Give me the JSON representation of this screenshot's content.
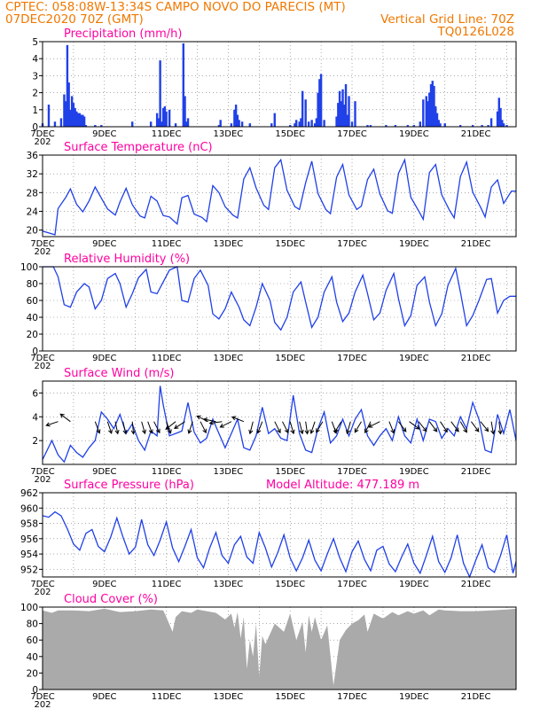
{
  "header": {
    "line1_left": "CPTEC:   058:08W-13:34S   CAMPO NOVO DO PARECIS (MT)",
    "line2_left": "07DEC2020 70Z (GMT)",
    "line2_right": "Vertical Grid Line: 70Z",
    "line3_right": "TQ0126L028"
  },
  "colors": {
    "header": "#f07800",
    "panel_title": "#ff00a0",
    "series": "#2040e8",
    "cloud": "#aaaaaa",
    "wind_arrow": "#000000"
  },
  "x_axis": {
    "labels": [
      "7DEC",
      "9DEC",
      "11DEC",
      "13DEC",
      "15DEC",
      "17DEC",
      "19DEC",
      "21DEC"
    ],
    "start_day": 7,
    "end_day": 22.3,
    "stub": "202"
  },
  "chart_data": [
    {
      "id": "precip",
      "type": "bar",
      "title": "Precipitation (mm/h)",
      "ylim": [
        0,
        5
      ],
      "yticks": [
        0,
        1,
        2,
        3,
        4,
        5
      ],
      "grid": true,
      "x": [
        7.0,
        7.2,
        7.4,
        7.6,
        7.7,
        7.75,
        7.8,
        7.85,
        7.9,
        7.95,
        8.0,
        8.05,
        8.1,
        8.15,
        8.2,
        8.25,
        8.3,
        8.35,
        8.4,
        8.7,
        8.9,
        9.9,
        10.5,
        10.7,
        10.75,
        10.8,
        10.85,
        10.9,
        10.95,
        11.0,
        11.1,
        11.3,
        11.55,
        11.6,
        11.65,
        11.7,
        12.7,
        12.75,
        13.1,
        13.2,
        13.25,
        13.3,
        13.35,
        13.45,
        13.7,
        14.4,
        14.5,
        15.0,
        15.15,
        15.2,
        15.3,
        15.35,
        15.4,
        15.5,
        15.6,
        15.7,
        15.8,
        15.85,
        15.9,
        15.95,
        16.0,
        16.1,
        16.5,
        16.55,
        16.6,
        16.65,
        16.7,
        16.75,
        16.8,
        16.85,
        16.9,
        17.0,
        17.1,
        17.5,
        17.6,
        18.1,
        18.4,
        18.8,
        19.0,
        19.2,
        19.3,
        19.4,
        19.45,
        19.5,
        19.55,
        19.6,
        19.65,
        19.7,
        19.75,
        19.8,
        19.85,
        20.0,
        20.5,
        20.9,
        21.2,
        21.4,
        21.5,
        21.7,
        21.75,
        21.8,
        21.85,
        21.9,
        22.0
      ],
      "values": [
        0.2,
        1.3,
        0.3,
        0.5,
        1.9,
        1.5,
        4.8,
        2.6,
        1.0,
        1.8,
        1.4,
        1.1,
        0.9,
        0.8,
        0.8,
        0.7,
        0.7,
        0.6,
        0.1,
        0.1,
        0.1,
        0.3,
        0.3,
        0.8,
        0.5,
        3.9,
        0.3,
        1.1,
        1.2,
        0.9,
        1.0,
        0.2,
        4.9,
        1.8,
        0.3,
        0.5,
        0.1,
        0.4,
        0.2,
        1.0,
        1.3,
        0.7,
        0.4,
        0.3,
        0.2,
        0.2,
        0.8,
        0.1,
        0.2,
        0.4,
        0.3,
        0.5,
        2.1,
        1.6,
        0.3,
        0.4,
        0.2,
        0.5,
        2.0,
        2.8,
        3.1,
        0.4,
        0.6,
        1.4,
        2.1,
        1.5,
        2.2,
        1.3,
        2.5,
        0.7,
        1.8,
        0.3,
        1.5,
        0.1,
        0.1,
        0.1,
        0.1,
        0.1,
        0.1,
        0.3,
        1.6,
        1.8,
        1.5,
        2.0,
        2.5,
        2.7,
        2.4,
        1.2,
        0.8,
        0.4,
        0.2,
        0.2,
        0.1,
        0.1,
        0.1,
        0.1,
        0.5,
        0.9,
        1.7,
        1.1,
        0.4,
        0.2,
        0.1
      ]
    },
    {
      "id": "temp",
      "type": "line",
      "title": "Surface Temperature (nC)",
      "ylim": [
        18.6,
        36
      ],
      "yticks": [
        20,
        24,
        28,
        32,
        36
      ],
      "grid": true,
      "x": [
        7.0,
        7.4,
        7.5,
        7.75,
        7.9,
        8.1,
        8.3,
        8.5,
        8.7,
        8.9,
        9.1,
        9.35,
        9.5,
        9.7,
        9.9,
        10.15,
        10.3,
        10.5,
        10.7,
        10.9,
        11.1,
        11.35,
        11.5,
        11.7,
        11.9,
        12.15,
        12.3,
        12.5,
        12.7,
        12.9,
        13.15,
        13.3,
        13.5,
        13.7,
        13.9,
        14.15,
        14.3,
        14.5,
        14.7,
        14.9,
        15.15,
        15.3,
        15.5,
        15.7,
        15.9,
        16.15,
        16.3,
        16.5,
        16.7,
        16.9,
        17.15,
        17.3,
        17.5,
        17.7,
        17.9,
        18.15,
        18.3,
        18.5,
        18.7,
        18.9,
        19.15,
        19.3,
        19.5,
        19.7,
        19.9,
        20.15,
        20.3,
        20.5,
        20.7,
        20.9,
        21.15,
        21.3,
        21.5,
        21.7,
        21.9,
        22.15,
        22.3
      ],
      "values": [
        19.8,
        19.0,
        24.6,
        27.0,
        28.8,
        25.5,
        23.9,
        26.2,
        29.2,
        26.8,
        24.5,
        23.2,
        26.0,
        28.9,
        25.4,
        23.0,
        22.6,
        27.2,
        26.2,
        23.1,
        22.8,
        21.3,
        26.9,
        27.4,
        23.4,
        22.7,
        21.8,
        29.5,
        28.0,
        25.0,
        23.2,
        22.6,
        30.9,
        33.3,
        29.0,
        25.3,
        24.4,
        33.3,
        35.0,
        28.5,
        25.0,
        24.4,
        30.1,
        34.7,
        27.8,
        24.4,
        23.5,
        31.3,
        34.0,
        27.5,
        24.4,
        25.1,
        30.8,
        33.0,
        27.7,
        24.1,
        23.6,
        32.1,
        35.0,
        27.0,
        24.1,
        22.3,
        32.3,
        34.0,
        27.5,
        24.2,
        22.6,
        31.4,
        34.5,
        28.1,
        24.9,
        22.8,
        29.2,
        30.7,
        25.7,
        28.3,
        28.3
      ]
    },
    {
      "id": "rh",
      "type": "line",
      "title": "Relative Humidity (%)",
      "ylim": [
        0,
        100
      ],
      "yticks": [
        0,
        20,
        40,
        60,
        80,
        100
      ],
      "grid": true,
      "x": [
        7.0,
        7.35,
        7.5,
        7.7,
        7.9,
        8.1,
        8.35,
        8.5,
        8.7,
        8.9,
        9.1,
        9.35,
        9.5,
        9.7,
        9.9,
        10.1,
        10.35,
        10.5,
        10.7,
        10.9,
        11.1,
        11.35,
        11.5,
        11.7,
        11.9,
        12.1,
        12.35,
        12.5,
        12.7,
        12.9,
        13.1,
        13.35,
        13.5,
        13.7,
        13.9,
        14.1,
        14.35,
        14.5,
        14.7,
        14.9,
        15.1,
        15.35,
        15.5,
        15.7,
        15.9,
        16.1,
        16.35,
        16.5,
        16.7,
        16.9,
        17.1,
        17.35,
        17.5,
        17.7,
        17.9,
        18.1,
        18.35,
        18.5,
        18.7,
        18.9,
        19.1,
        19.35,
        19.5,
        19.7,
        19.9,
        20.1,
        20.35,
        20.5,
        20.7,
        20.9,
        21.1,
        21.35,
        21.5,
        21.7,
        21.9,
        22.1,
        22.3
      ],
      "values": [
        100,
        100,
        88,
        55,
        52,
        70,
        80,
        76,
        50,
        60,
        86,
        92,
        80,
        52,
        68,
        87,
        97,
        70,
        68,
        82,
        96,
        100,
        60,
        58,
        86,
        96,
        78,
        44,
        38,
        50,
        70,
        52,
        37,
        30,
        52,
        80,
        60,
        34,
        25,
        40,
        70,
        82,
        58,
        28,
        40,
        70,
        88,
        58,
        35,
        45,
        70,
        90,
        68,
        37,
        45,
        72,
        92,
        62,
        30,
        42,
        78,
        88,
        58,
        30,
        44,
        78,
        98,
        70,
        30,
        42,
        60,
        85,
        86,
        45,
        60,
        65,
        65
      ]
    },
    {
      "id": "wind",
      "type": "line",
      "title": "Surface Wind (m/s)",
      "ylim": [
        0,
        7
      ],
      "yticks": [
        2,
        4,
        6
      ],
      "grid": true,
      "x": [
        7.0,
        7.3,
        7.5,
        7.7,
        7.9,
        8.1,
        8.3,
        8.5,
        8.7,
        8.9,
        9.1,
        9.3,
        9.5,
        9.7,
        9.9,
        10.1,
        10.3,
        10.5,
        10.7,
        10.8,
        10.9,
        11.1,
        11.3,
        11.5,
        11.7,
        11.9,
        12.1,
        12.3,
        12.5,
        12.7,
        12.9,
        13.1,
        13.3,
        13.5,
        13.7,
        13.9,
        14.1,
        14.3,
        14.5,
        14.7,
        14.9,
        15.1,
        15.3,
        15.5,
        15.7,
        15.9,
        16.1,
        16.3,
        16.5,
        16.7,
        16.9,
        17.1,
        17.3,
        17.5,
        17.7,
        17.9,
        18.1,
        18.3,
        18.5,
        18.7,
        18.9,
        19.1,
        19.3,
        19.5,
        19.7,
        19.9,
        20.1,
        20.3,
        20.5,
        20.7,
        20.9,
        21.1,
        21.3,
        21.5,
        21.7,
        21.9,
        22.1,
        22.3
      ],
      "values": [
        0.4,
        2.0,
        0.8,
        0.2,
        1.6,
        1.0,
        0.6,
        1.4,
        2.0,
        4.4,
        3.8,
        3.0,
        4.2,
        2.6,
        3.4,
        2.0,
        1.2,
        2.8,
        2.4,
        6.6,
        5.0,
        2.4,
        2.6,
        2.8,
        5.2,
        2.7,
        1.8,
        2.2,
        3.8,
        2.6,
        1.4,
        2.6,
        3.8,
        1.4,
        1.2,
        2.4,
        4.8,
        2.6,
        3.0,
        2.2,
        2.0,
        5.8,
        2.6,
        1.2,
        1.0,
        3.0,
        4.4,
        1.8,
        2.4,
        3.8,
        2.4,
        3.8,
        4.6,
        2.4,
        1.6,
        2.4,
        3.0,
        2.0,
        4.0,
        2.4,
        1.8,
        3.8,
        2.0,
        3.8,
        3.6,
        2.2,
        3.0,
        2.4,
        4.0,
        3.0,
        5.2,
        3.8,
        1.2,
        1.0,
        4.2,
        2.6,
        4.6,
        2.0
      ]
    },
    {
      "id": "pressure",
      "type": "line",
      "title": "Surface Pressure (hPa)",
      "annotation": "Model Altitude: 477.189 m",
      "ylim": [
        951,
        962
      ],
      "yticks": [
        952,
        954,
        956,
        958,
        960,
        962
      ],
      "grid": true,
      "x": [
        7.0,
        7.2,
        7.4,
        7.6,
        7.8,
        8.0,
        8.2,
        8.4,
        8.6,
        8.8,
        9.0,
        9.2,
        9.4,
        9.6,
        9.8,
        10.0,
        10.2,
        10.4,
        10.6,
        10.8,
        11.0,
        11.2,
        11.4,
        11.6,
        11.8,
        12.0,
        12.2,
        12.4,
        12.6,
        12.8,
        13.0,
        13.2,
        13.4,
        13.6,
        13.8,
        14.0,
        14.2,
        14.4,
        14.6,
        14.8,
        15.0,
        15.2,
        15.4,
        15.6,
        15.8,
        16.0,
        16.2,
        16.4,
        16.6,
        16.8,
        17.0,
        17.2,
        17.4,
        17.6,
        17.8,
        18.0,
        18.2,
        18.4,
        18.6,
        18.8,
        19.0,
        19.2,
        19.4,
        19.6,
        19.8,
        20.0,
        20.2,
        20.4,
        20.6,
        20.8,
        21.0,
        21.2,
        21.4,
        21.6,
        21.8,
        22.0,
        22.2,
        22.3
      ],
      "values": [
        959.0,
        958.8,
        959.5,
        959.0,
        957.3,
        955.3,
        954.5,
        956.7,
        957.2,
        955.0,
        954.3,
        956.2,
        958.7,
        956.2,
        954.0,
        954.9,
        958.5,
        955.2,
        953.8,
        955.8,
        958.2,
        954.8,
        953.0,
        955.0,
        957.2,
        953.5,
        952.2,
        954.8,
        956.8,
        953.8,
        952.8,
        955.2,
        956.3,
        953.6,
        952.8,
        956.8,
        954.8,
        952.3,
        954.2,
        956.5,
        953.5,
        951.8,
        953.5,
        955.8,
        953.2,
        951.8,
        954.0,
        956.0,
        953.5,
        951.7,
        954.3,
        955.7,
        953.3,
        951.8,
        954.5,
        955.0,
        952.7,
        951.7,
        953.6,
        955.3,
        952.8,
        951.5,
        953.8,
        956.3,
        953.0,
        951.6,
        953.5,
        956.5,
        952.8,
        951.0,
        953.2,
        955.2,
        952.2,
        951.6,
        953.8,
        956.5,
        951.5,
        953.0
      ]
    },
    {
      "id": "cloud",
      "type": "area",
      "title": "Cloud Cover (%)",
      "ylim": [
        0,
        100
      ],
      "yticks": [
        0,
        20,
        40,
        60,
        80,
        100
      ],
      "grid": true,
      "x": [
        7.0,
        7.3,
        7.5,
        8.0,
        8.5,
        9.0,
        9.5,
        10.0,
        10.5,
        10.9,
        11.0,
        11.2,
        11.3,
        11.5,
        11.8,
        12.0,
        12.3,
        12.6,
        12.9,
        13.1,
        13.2,
        13.3,
        13.4,
        13.5,
        13.6,
        13.7,
        13.8,
        13.9,
        14.0,
        14.1,
        14.2,
        14.5,
        14.8,
        15.0,
        15.2,
        15.4,
        15.5,
        15.6,
        15.7,
        15.8,
        16.0,
        16.2,
        16.4,
        16.6,
        16.8,
        17.0,
        17.2,
        17.4,
        17.5,
        17.7,
        18.0,
        18.3,
        18.5,
        18.8,
        19.0,
        19.3,
        19.5,
        19.8,
        20.0,
        20.5,
        21.0,
        21.5,
        22.0,
        22.3
      ],
      "values": [
        96,
        93,
        96,
        96,
        95,
        98,
        94,
        95,
        97,
        96,
        88,
        70,
        88,
        95,
        93,
        97,
        95,
        93,
        85,
        92,
        75,
        94,
        62,
        88,
        25,
        60,
        40,
        80,
        15,
        65,
        55,
        80,
        70,
        92,
        60,
        82,
        45,
        90,
        70,
        88,
        60,
        78,
        5,
        60,
        72,
        80,
        84,
        91,
        70,
        92,
        86,
        94,
        90,
        95,
        92,
        96,
        90,
        97,
        96,
        95,
        95,
        96,
        97,
        98
      ]
    }
  ],
  "wind_arrows": {
    "y": 3.6,
    "x": [
      7.5,
      7.9,
      8.7,
      9.1,
      9.35,
      9.6,
      9.9,
      10.2,
      10.4,
      10.6,
      11.0,
      11.3,
      11.6,
      11.85,
      12.1,
      12.35,
      12.6,
      12.8,
      13.1,
      13.5,
      13.8,
      14.1,
      14.5,
      14.75,
      15.0,
      15.3,
      15.5,
      15.8,
      16.05,
      16.35,
      16.65,
      16.95,
      17.3,
      17.6,
      17.9,
      18.2,
      18.5,
      18.85,
      19.15,
      19.5,
      19.85,
      20.2,
      20.5,
      20.85,
      21.15,
      21.5,
      21.75
    ],
    "u": [
      -0.6,
      -0.4,
      0.3,
      0.2,
      0.1,
      0.2,
      0.1,
      0.2,
      0.4,
      0.5,
      0.3,
      -0.5,
      -0.6,
      -0.2,
      0.3,
      -0.6,
      -0.5,
      -0.7,
      -0.4,
      -0.5,
      -0.2,
      -0.2,
      0.3,
      0.3,
      0.2,
      0.2,
      0.1,
      -0.2,
      -0.3,
      0.3,
      -0.3,
      -0.2,
      -0.3,
      -0.3,
      -0.4,
      0.2,
      0.3,
      0.4,
      0.4,
      0.3,
      0.4,
      0.3,
      0.3,
      0.3,
      0.4,
      0.1,
      0.1
    ],
    "v": [
      -0.2,
      0.3,
      -0.8,
      -0.6,
      -0.5,
      -0.9,
      -1.0,
      -0.7,
      -1.1,
      -1.0,
      -0.8,
      -0.4,
      -0.4,
      -0.6,
      -0.6,
      0.3,
      0.1,
      -0.1,
      -0.2,
      0.2,
      -0.8,
      -0.5,
      -0.6,
      -0.6,
      -0.7,
      -0.8,
      -0.7,
      -0.6,
      -0.5,
      -0.8,
      -0.5,
      -0.7,
      -0.5,
      -0.6,
      -0.2,
      -0.5,
      -0.4,
      -0.3,
      -0.5,
      -0.4,
      -0.6,
      -0.4,
      -0.5,
      -0.4,
      -0.5,
      -0.6,
      -0.8
    ]
  }
}
